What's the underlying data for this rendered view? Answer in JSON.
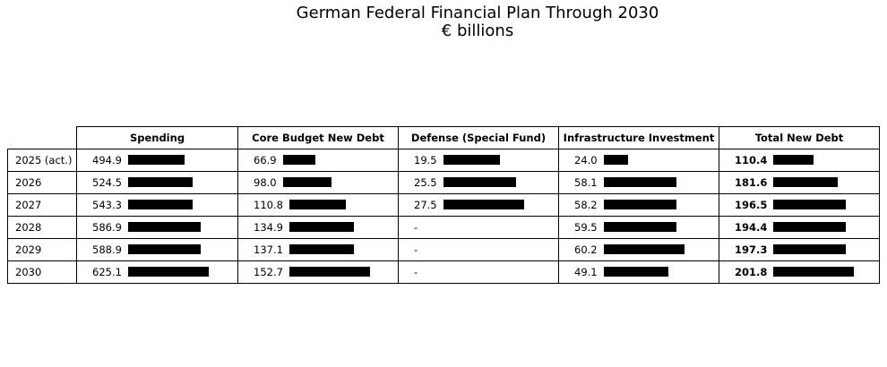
{
  "title": "German Federal Financial Plan Through 2030",
  "subtitle": "€ billions",
  "chart_data": {
    "type": "table",
    "title": "German Federal Financial Plan Through 2030",
    "subtitle": "€ billions",
    "columns": [
      "Spending",
      "Core Budget New Debt",
      "Defense (Special Fund)",
      "Infrastructure Investment",
      "Total New Debt"
    ],
    "rows": [
      "2025 (act.)",
      "2026",
      "2027",
      "2028",
      "2029",
      "2030"
    ],
    "series": [
      {
        "name": "Spending",
        "values": [
          494.9,
          524.5,
          543.3,
          586.9,
          588.9,
          625.1
        ],
        "bar_blocks": [
          7,
          8,
          8,
          9,
          9,
          10
        ]
      },
      {
        "name": "Core Budget New Debt",
        "values": [
          66.9,
          98.0,
          110.8,
          134.9,
          137.1,
          152.7
        ],
        "bar_blocks": [
          4,
          6,
          7,
          8,
          8,
          10
        ]
      },
      {
        "name": "Defense (Special Fund)",
        "values": [
          19.5,
          25.5,
          27.5,
          null,
          null,
          null
        ],
        "bar_blocks": [
          7,
          9,
          10,
          0,
          0,
          0
        ]
      },
      {
        "name": "Infrastructure Investment",
        "values": [
          24.0,
          58.1,
          58.2,
          59.5,
          60.2,
          49.1
        ],
        "bar_blocks": [
          3,
          9,
          9,
          9,
          10,
          8
        ]
      },
      {
        "name": "Total New Debt",
        "values": [
          110.4,
          181.6,
          196.5,
          194.4,
          197.3,
          201.8
        ],
        "bar_blocks": [
          5,
          8,
          9,
          9,
          9,
          10
        ]
      }
    ]
  },
  "table": {
    "headers": [
      "Spending",
      "Core Budget New Debt",
      "Defense (Special Fund)",
      "Infrastructure Investment",
      "Total New Debt"
    ],
    "rows": [
      {
        "year": "2025 (act.)",
        "cells": [
          "494.9",
          "66.9",
          "19.5",
          "24.0",
          "110.4"
        ]
      },
      {
        "year": "2026",
        "cells": [
          "524.5",
          "98.0",
          "25.5",
          "58.1",
          "181.6"
        ]
      },
      {
        "year": "2027",
        "cells": [
          "543.3",
          "110.8",
          "27.5",
          "58.2",
          "196.5"
        ]
      },
      {
        "year": "2028",
        "cells": [
          "586.9",
          "134.9",
          "-",
          "59.5",
          "194.4"
        ]
      },
      {
        "year": "2029",
        "cells": [
          "588.9",
          "137.1",
          "-",
          "60.2",
          "197.3"
        ]
      },
      {
        "year": "2030",
        "cells": [
          "625.1",
          "152.7",
          "-",
          "49.1",
          "201.8"
        ]
      }
    ]
  }
}
